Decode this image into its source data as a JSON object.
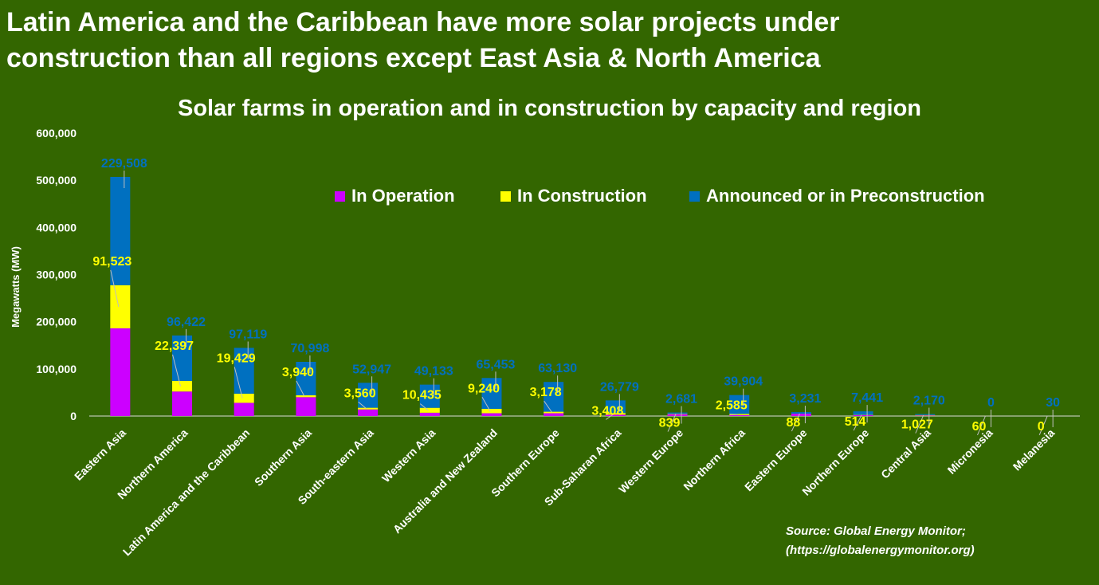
{
  "headline": {
    "line1": "Latin America and the Caribbean have more solar projects under",
    "line2": "construction than all regions except East Asia & North America"
  },
  "source": {
    "line1": "Source: Global Energy Monitor;",
    "line2": "(https://globalenergymonitor.org)"
  },
  "colors": {
    "background": "#336600",
    "operation": "#cc00ff",
    "construction": "#ffff00",
    "announced": "#0070c0",
    "text": "#ffffff"
  },
  "chart_data": {
    "type": "bar",
    "stacked": true,
    "title": "Solar farms in operation and in construction by capacity and region",
    "ylabel": "Megawatts (MW)",
    "xlabel": "",
    "ylim": [
      0,
      600000
    ],
    "yticks": [
      "0",
      "100,000",
      "200,000",
      "300,000",
      "400,000",
      "500,000",
      "600,000"
    ],
    "grid": false,
    "legend_position": "top-right",
    "categories": [
      "Eastern Asia",
      "Northern America",
      "Latin America and the Caribbean",
      "Southern Asia",
      "South-eastern Asia",
      "Western Asia",
      "Australia and New Zealand",
      "Southern Europe",
      "Sub-Saharan Africa",
      "Western Europe",
      "Northern Africa",
      "Eastern Europe",
      "Northern Europe",
      "Central Asia",
      "Micronesia",
      "Melanesia"
    ],
    "series": [
      {
        "name": "In Operation",
        "values": [
          186000,
          52000,
          28000,
          40000,
          14000,
          7000,
          6000,
          6000,
          3000,
          4000,
          2000,
          5000,
          2000,
          1000,
          0,
          0
        ],
        "labels": [
          "",
          "",
          "",
          "",
          "",
          "",
          "",
          "",
          "",
          "",
          "",
          "",
          "",
          "",
          "",
          ""
        ]
      },
      {
        "name": "In Construction",
        "values": [
          91523,
          22397,
          19429,
          3940,
          3560,
          10435,
          9240,
          3178,
          3408,
          839,
          2585,
          88,
          514,
          1027,
          60,
          0
        ],
        "labels": [
          "91,523",
          "22,397",
          "19,429",
          "3,940",
          "3,560",
          "10,435",
          "9,240",
          "3,178",
          "3,408",
          "839",
          "2,585",
          "88",
          "514",
          "1,027",
          "60",
          "0"
        ]
      },
      {
        "name": "Announced or in Preconstruction",
        "values": [
          229508,
          96422,
          97119,
          70998,
          52947,
          49133,
          65453,
          63130,
          26779,
          2681,
          39904,
          3231,
          7441,
          2170,
          0,
          30
        ],
        "labels": [
          "229,508",
          "96,422",
          "97,119",
          "70,998",
          "52,947",
          "49,133",
          "65,453",
          "63,130",
          "26,779",
          "2,681",
          "39,904",
          "3,231",
          "7,441",
          "2,170",
          "0",
          "30"
        ]
      }
    ]
  }
}
